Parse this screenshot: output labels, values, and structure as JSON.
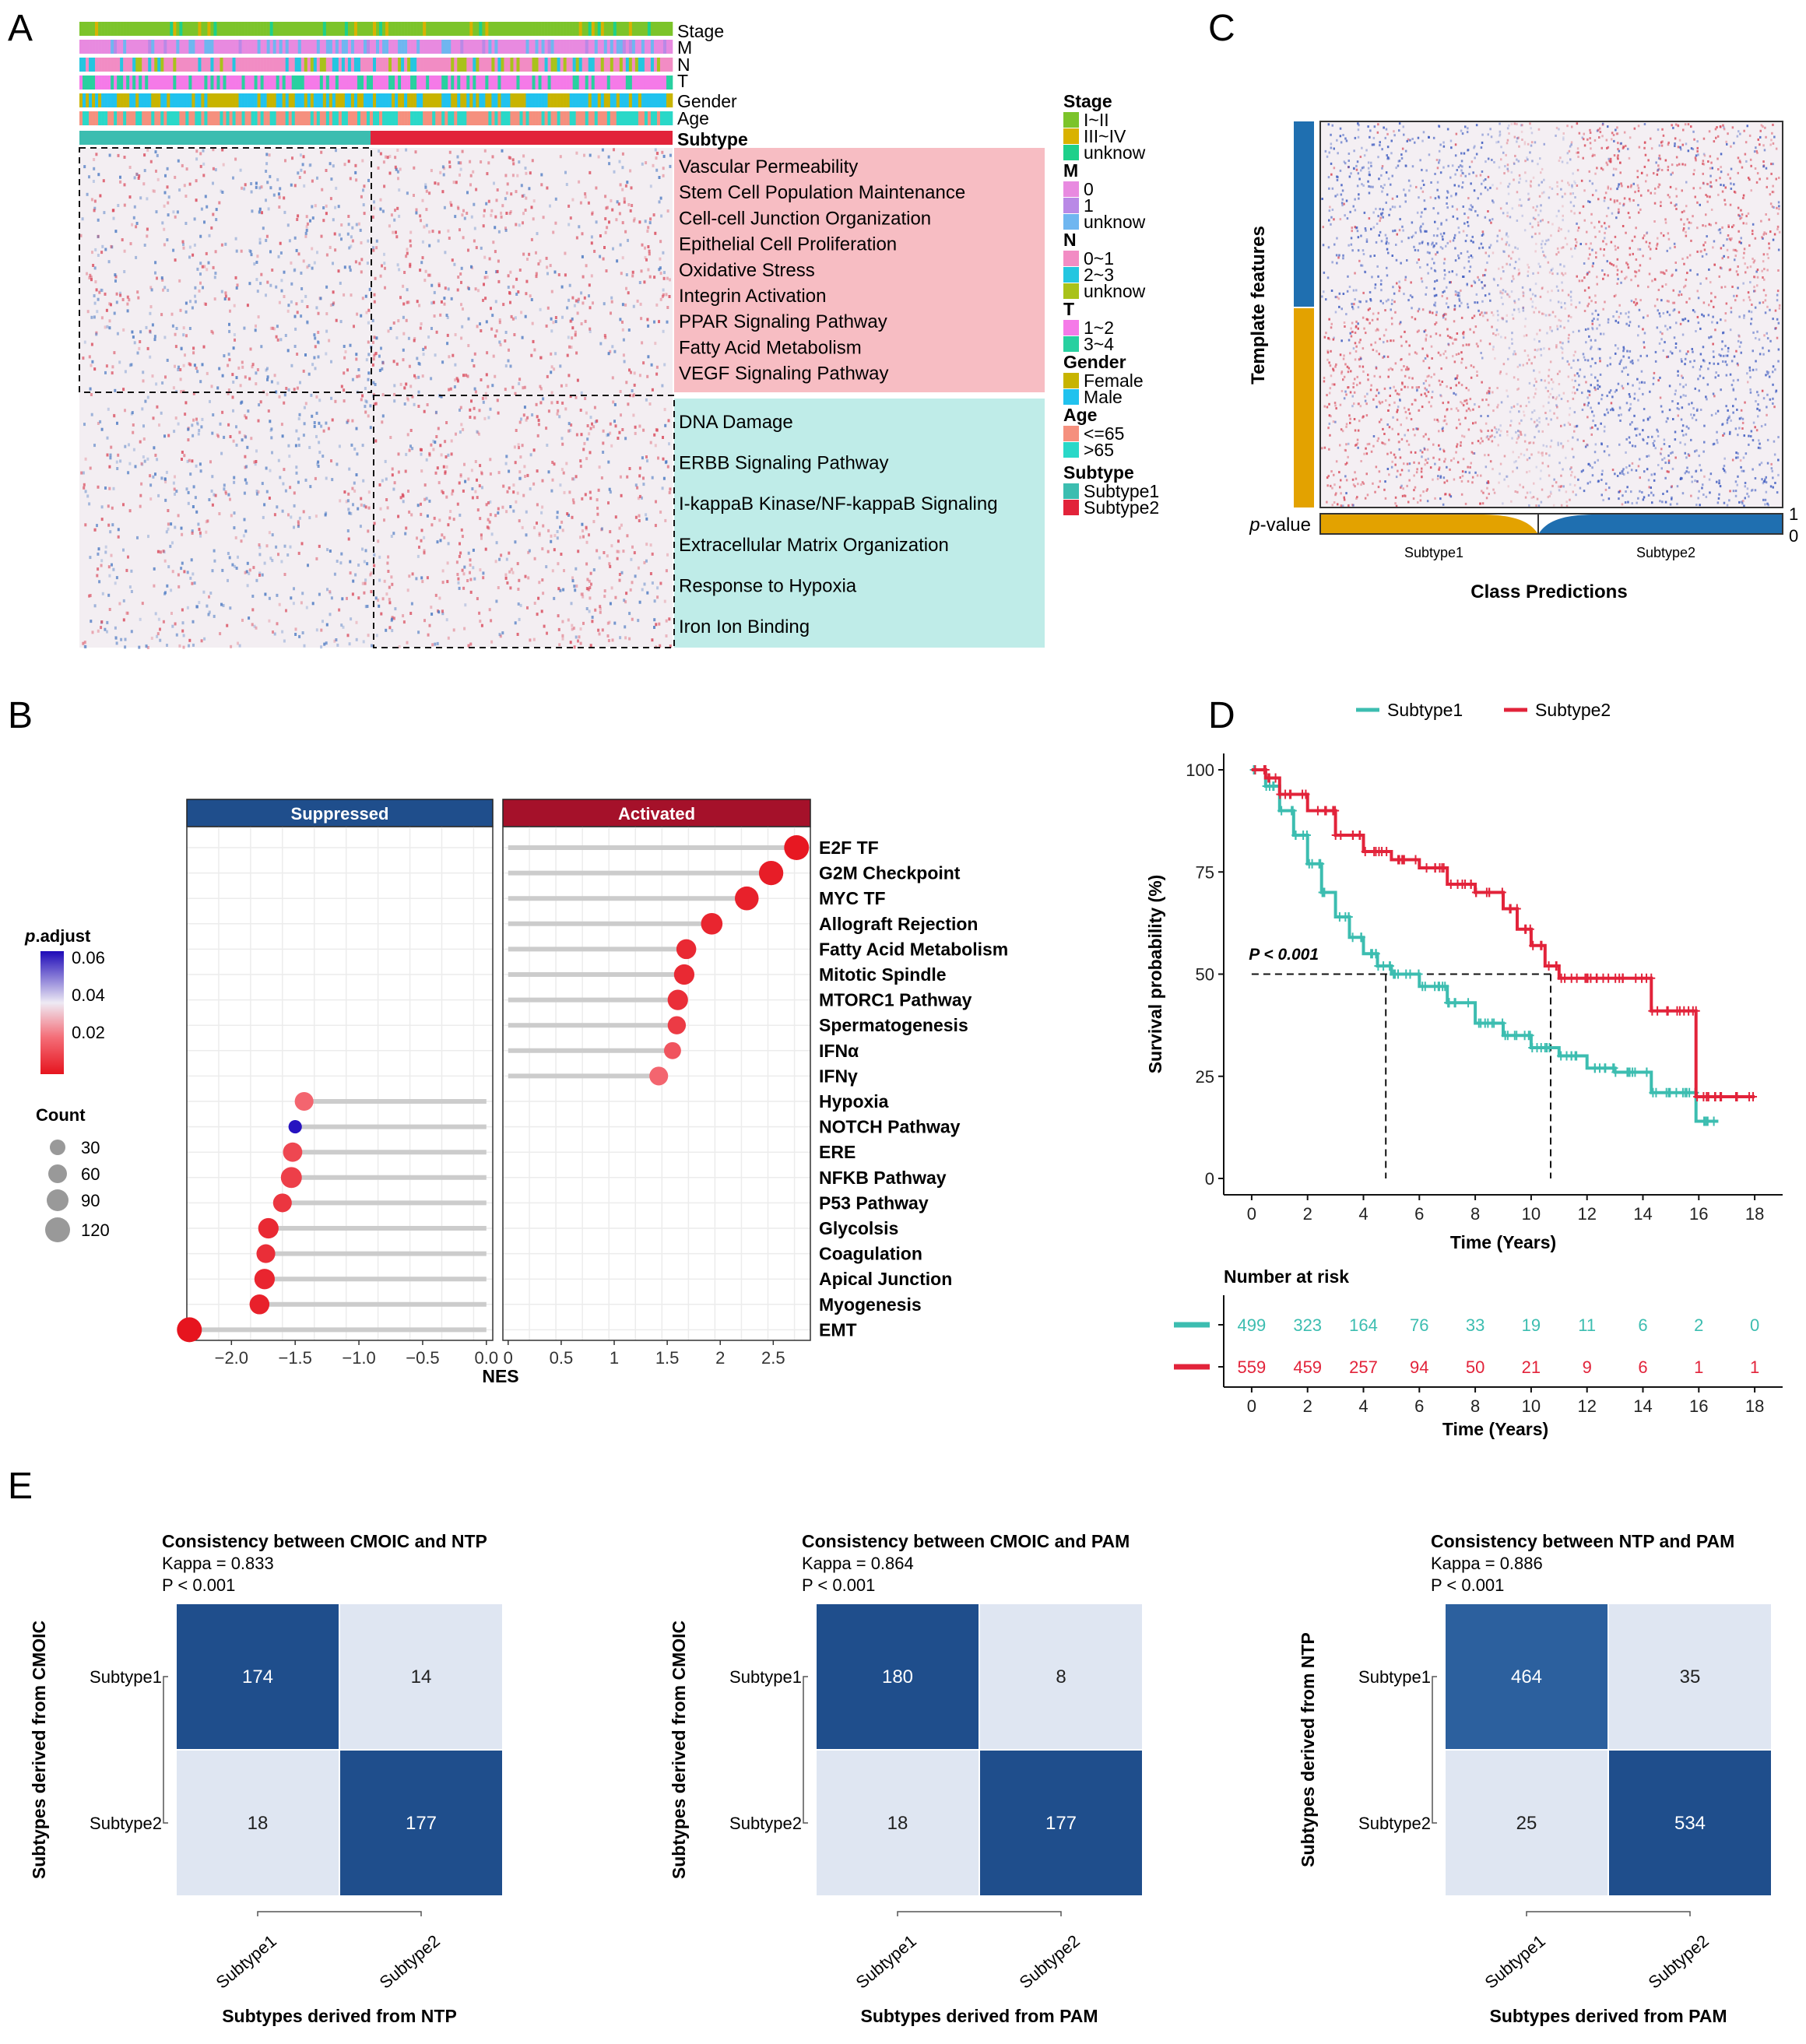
{
  "panels": {
    "A": "A",
    "B": "B",
    "C": "C",
    "D": "D",
    "E": "E"
  },
  "colors": {
    "teal": "#3cbdb0",
    "red": "#e2233a",
    "pink_band": "#f7bdc3",
    "teal_band": "#bfece8",
    "dark_blue": "#1f4e8c",
    "light_blue": "#dfe6f2",
    "mid_blue": "#3567a5",
    "heat_red": "#e23a4a",
    "heat_blue": "#3a52b0",
    "grey_lollipop": "#cccccc",
    "strip_blue": "#1f6fb0",
    "strip_gold": "#e3a200"
  },
  "panel_a": {
    "track_labels": [
      "Stage",
      "M",
      "N",
      "T",
      "Gender",
      "Age"
    ],
    "subtype_track_label": "Subtype",
    "pathways_pink": [
      "Vascular Permeability",
      "Stem Cell Population Maintenance",
      "Cell-cell Junction Organization",
      "Epithelial Cell Proliferation",
      "Oxidative Stress",
      "Integrin Activation",
      "PPAR Signaling Pathway",
      "Fatty Acid Metabolism",
      "VEGF Signaling Pathway"
    ],
    "pathways_teal": [
      "DNA Damage",
      "ERBB Signaling Pathway",
      "I-kappaB Kinase/NF-kappaB Signaling",
      "Extracellular Matrix Organization",
      "Response to Hypoxia",
      "Iron Ion Binding"
    ],
    "legend": [
      {
        "title": "Stage",
        "items": [
          {
            "label": "I~II",
            "color": "#7cc42a"
          },
          {
            "label": "III~IV",
            "color": "#d9b200"
          },
          {
            "label": "unknow",
            "color": "#1ed08a"
          }
        ]
      },
      {
        "title": "M",
        "items": [
          {
            "label": "0",
            "color": "#e88ae0"
          },
          {
            "label": "1",
            "color": "#b989e6"
          },
          {
            "label": "unknow",
            "color": "#6fb6f0"
          }
        ]
      },
      {
        "title": "N",
        "items": [
          {
            "label": "0~1",
            "color": "#f28cc4"
          },
          {
            "label": "2~3",
            "color": "#24c6e0"
          },
          {
            "label": "unknow",
            "color": "#a9c21a"
          }
        ]
      },
      {
        "title": "T",
        "items": [
          {
            "label": "1~2",
            "color": "#f57ae8"
          },
          {
            "label": "3~4",
            "color": "#28d0a0"
          }
        ]
      },
      {
        "title": "Gender",
        "items": [
          {
            "label": "Female",
            "color": "#c8b400"
          },
          {
            "label": "Male",
            "color": "#21c2ee"
          }
        ]
      },
      {
        "title": "Age",
        "items": [
          {
            "label": "<=65",
            "color": "#f5907e"
          },
          {
            "label": ">65",
            "color": "#2ad8c8"
          }
        ]
      },
      {
        "title": "Subtype",
        "items": [
          {
            "label": "Subtype1",
            "color": "#3cbdb0"
          },
          {
            "label": "Subtype2",
            "color": "#e2233a"
          }
        ]
      }
    ]
  },
  "panel_c": {
    "ylabel": "Template features",
    "pvalue_label_prefix": "p",
    "pvalue_label_suffix": "-value",
    "scale_top": "1",
    "scale_bottom": "0",
    "class_labels": [
      "Subtype1",
      "Subtype2"
    ],
    "xlabel": "Class Predictions"
  },
  "chart_data": [
    {
      "id": "A",
      "type": "heatmap",
      "title": "",
      "annotation_tracks": [
        "Stage",
        "M",
        "N",
        "T",
        "Gender",
        "Age",
        "Subtype"
      ],
      "row_groups": [
        {
          "band": "pink",
          "rows": [
            "Vascular Permeability",
            "Stem Cell Population Maintenance",
            "Cell-cell Junction Organization",
            "Epithelial Cell Proliferation",
            "Oxidative Stress",
            "Integrin Activation",
            "PPAR Signaling Pathway",
            "Fatty Acid Metabolism",
            "VEGF Signaling Pathway"
          ]
        },
        {
          "band": "teal",
          "rows": [
            "DNA Damage",
            "ERBB Signaling Pathway",
            "I-kappaB Kinase/NF-kappaB Signaling",
            "Extracellular Matrix Organization",
            "Response to Hypoxia",
            "Iron Ion Binding"
          ]
        }
      ],
      "column_groups": [
        "Subtype1",
        "Subtype2"
      ]
    },
    {
      "id": "B",
      "type": "scatter",
      "facets": [
        "Suppressed",
        "Activated"
      ],
      "xlabel": "NES",
      "suppressed_xlim": [
        -2.35,
        0.05
      ],
      "suppressed_ticks": [
        -2.0,
        -1.5,
        -1.0,
        -0.5,
        0.0
      ],
      "suppressed_tick_labels": [
        "−2.0",
        "−1.5",
        "−1.0",
        "−0.5",
        "0.0"
      ],
      "activated_xlim": [
        -0.05,
        2.85
      ],
      "activated_ticks": [
        0,
        0.5,
        1,
        1.5,
        2,
        2.5
      ],
      "activated_tick_labels": [
        "0",
        "0.5",
        "1",
        "1.5",
        "2",
        "2.5"
      ],
      "categories": [
        "E2F TF",
        "G2M Checkpoint",
        "MYC TF",
        "Allograft Rejection",
        "Fatty Acid Metabolism",
        "Mitotic Spindle",
        "MTORC1 Pathway",
        "Spermatogenesis",
        "IFNα",
        "IFNγ",
        "Hypoxia",
        "NOTCH Pathway",
        "ERE",
        "NFKB Pathway",
        "P53 Pathway",
        "Glycolsis",
        "Coagulation",
        "Apical Junction",
        "Myogenesis",
        "EMT"
      ],
      "points": [
        {
          "term": "E2F TF",
          "facet": "Activated",
          "nes": 2.72,
          "count": 125,
          "p_adjust": 0.004
        },
        {
          "term": "G2M Checkpoint",
          "facet": "Activated",
          "nes": 2.48,
          "count": 120,
          "p_adjust": 0.005
        },
        {
          "term": "MYC TF",
          "facet": "Activated",
          "nes": 2.25,
          "count": 115,
          "p_adjust": 0.006
        },
        {
          "term": "Allograft Rejection",
          "facet": "Activated",
          "nes": 1.92,
          "count": 95,
          "p_adjust": 0.007
        },
        {
          "term": "Fatty Acid Metabolism",
          "facet": "Activated",
          "nes": 1.68,
          "count": 80,
          "p_adjust": 0.008
        },
        {
          "term": "Mitotic Spindle",
          "facet": "Activated",
          "nes": 1.66,
          "count": 85,
          "p_adjust": 0.008
        },
        {
          "term": "MTORC1 Pathway",
          "facet": "Activated",
          "nes": 1.6,
          "count": 85,
          "p_adjust": 0.009
        },
        {
          "term": "Spermatogenesis",
          "facet": "Activated",
          "nes": 1.59,
          "count": 65,
          "p_adjust": 0.012
        },
        {
          "term": "IFNα",
          "facet": "Activated",
          "nes": 1.55,
          "count": 55,
          "p_adjust": 0.018
        },
        {
          "term": "IFNγ",
          "facet": "Activated",
          "nes": 1.42,
          "count": 70,
          "p_adjust": 0.022
        },
        {
          "term": "Hypoxia",
          "facet": "Suppressed",
          "nes": -1.43,
          "count": 70,
          "p_adjust": 0.022
        },
        {
          "term": "NOTCH Pathway",
          "facet": "Suppressed",
          "nes": -1.5,
          "count": 22,
          "p_adjust": 0.062
        },
        {
          "term": "ERE",
          "facet": "Suppressed",
          "nes": -1.52,
          "count": 75,
          "p_adjust": 0.015
        },
        {
          "term": "NFKB Pathway",
          "facet": "Suppressed",
          "nes": -1.53,
          "count": 90,
          "p_adjust": 0.013
        },
        {
          "term": "P53 Pathway",
          "facet": "Suppressed",
          "nes": -1.6,
          "count": 70,
          "p_adjust": 0.011
        },
        {
          "term": "Glycolsis",
          "facet": "Suppressed",
          "nes": -1.71,
          "count": 85,
          "p_adjust": 0.008
        },
        {
          "term": "Coagulation",
          "facet": "Suppressed",
          "nes": -1.73,
          "count": 70,
          "p_adjust": 0.009
        },
        {
          "term": "Apical Junction",
          "facet": "Suppressed",
          "nes": -1.74,
          "count": 85,
          "p_adjust": 0.007
        },
        {
          "term": "Myogenesis",
          "facet": "Suppressed",
          "nes": -1.78,
          "count": 80,
          "p_adjust": 0.006
        },
        {
          "term": "EMT",
          "facet": "Suppressed",
          "nes": -2.33,
          "count": 125,
          "p_adjust": 0.003
        }
      ],
      "color_legend": {
        "title_bold_italic": "p",
        "title_rest": ".adjust",
        "values": [
          "0.06",
          "0.04",
          "0.02"
        ]
      },
      "size_legend": {
        "title": "Count",
        "values": [
          "30",
          "60",
          "90",
          "120"
        ]
      }
    },
    {
      "id": "C",
      "type": "heatmap",
      "title": "",
      "xlabel": "Class Predictions",
      "ylabel": "Template features",
      "classes": [
        "Subtype1",
        "Subtype2"
      ]
    },
    {
      "id": "D",
      "type": "line",
      "xlabel": "Time (Years)",
      "ylabel": "Survival probability (%)",
      "xlim": [
        -1,
        19
      ],
      "ylim": [
        -4,
        104
      ],
      "x_ticks": [
        "0",
        "2",
        "4",
        "6",
        "8",
        "10",
        "12",
        "14",
        "16",
        "18"
      ],
      "y_ticks": [
        "0",
        "25",
        "50",
        "75",
        "100"
      ],
      "annotation": "P < 0.001",
      "median_survival": {
        "Subtype1": 4.8,
        "Subtype2": 10.7
      },
      "series": [
        {
          "name": "Subtype1",
          "points": [
            [
              0,
              100
            ],
            [
              0.5,
              96
            ],
            [
              1,
              90
            ],
            [
              1.5,
              84
            ],
            [
              2,
              77
            ],
            [
              2.5,
              70
            ],
            [
              3,
              64
            ],
            [
              3.5,
              59
            ],
            [
              4,
              55
            ],
            [
              4.5,
              52
            ],
            [
              5,
              50
            ],
            [
              6,
              47
            ],
            [
              7,
              43
            ],
            [
              8,
              38
            ],
            [
              9,
              35
            ],
            [
              10,
              32
            ],
            [
              11,
              30
            ],
            [
              12,
              27
            ],
            [
              13,
              26
            ],
            [
              14,
              26
            ],
            [
              14.3,
              21
            ],
            [
              15,
              21
            ],
            [
              15.9,
              14
            ],
            [
              16.7,
              14
            ]
          ]
        },
        {
          "name": "Subtype2",
          "points": [
            [
              0,
              100
            ],
            [
              0.5,
              98
            ],
            [
              1,
              94
            ],
            [
              2,
              90
            ],
            [
              3,
              84
            ],
            [
              4,
              80
            ],
            [
              5,
              78
            ],
            [
              6,
              76
            ],
            [
              7,
              72
            ],
            [
              8,
              70
            ],
            [
              9,
              66
            ],
            [
              9.5,
              61
            ],
            [
              10,
              57
            ],
            [
              10.5,
              52
            ],
            [
              11,
              49
            ],
            [
              12,
              49
            ],
            [
              13,
              49
            ],
            [
              14.3,
              49
            ],
            [
              14.3,
              41
            ],
            [
              15,
              41
            ],
            [
              15.9,
              41
            ],
            [
              15.9,
              20
            ],
            [
              18,
              20
            ]
          ]
        }
      ],
      "risk_table": {
        "title": "Number at risk",
        "times": [
          "0",
          "2",
          "4",
          "6",
          "8",
          "10",
          "12",
          "14",
          "16",
          "18"
        ],
        "Subtype1": [
          "499",
          "323",
          "164",
          "76",
          "33",
          "19",
          "11",
          "6",
          "2",
          "0"
        ],
        "Subtype2": [
          "559",
          "459",
          "257",
          "94",
          "50",
          "21",
          "9",
          "6",
          "1",
          "1"
        ],
        "xlabel": "Time (Years)"
      }
    },
    {
      "id": "E1",
      "type": "heatmap",
      "title": "Consistency between CMOIC and NTP",
      "kappa": "Kappa = 0.833",
      "pval": "P < 0.001",
      "xlabel": "Subtypes derived from NTP",
      "ylabel": "Subtypes derived from CMOIC",
      "categories": [
        "Subtype1",
        "Subtype2"
      ],
      "matrix": [
        [
          174,
          14
        ],
        [
          18,
          177
        ]
      ]
    },
    {
      "id": "E2",
      "type": "heatmap",
      "title": "Consistency between CMOIC and PAM",
      "kappa": "Kappa = 0.864",
      "pval": "P < 0.001",
      "xlabel": "Subtypes derived from PAM",
      "ylabel": "Subtypes derived from CMOIC",
      "categories": [
        "Subtype1",
        "Subtype2"
      ],
      "matrix": [
        [
          180,
          8
        ],
        [
          18,
          177
        ]
      ]
    },
    {
      "id": "E3",
      "type": "heatmap",
      "title": "Consistency between NTP and PAM",
      "kappa": "Kappa = 0.886",
      "pval": "P < 0.001",
      "xlabel": "Subtypes derived from PAM",
      "ylabel": "Subtypes derived from NTP",
      "categories": [
        "Subtype1",
        "Subtype2"
      ],
      "matrix": [
        [
          464,
          35
        ],
        [
          25,
          534
        ]
      ]
    }
  ]
}
